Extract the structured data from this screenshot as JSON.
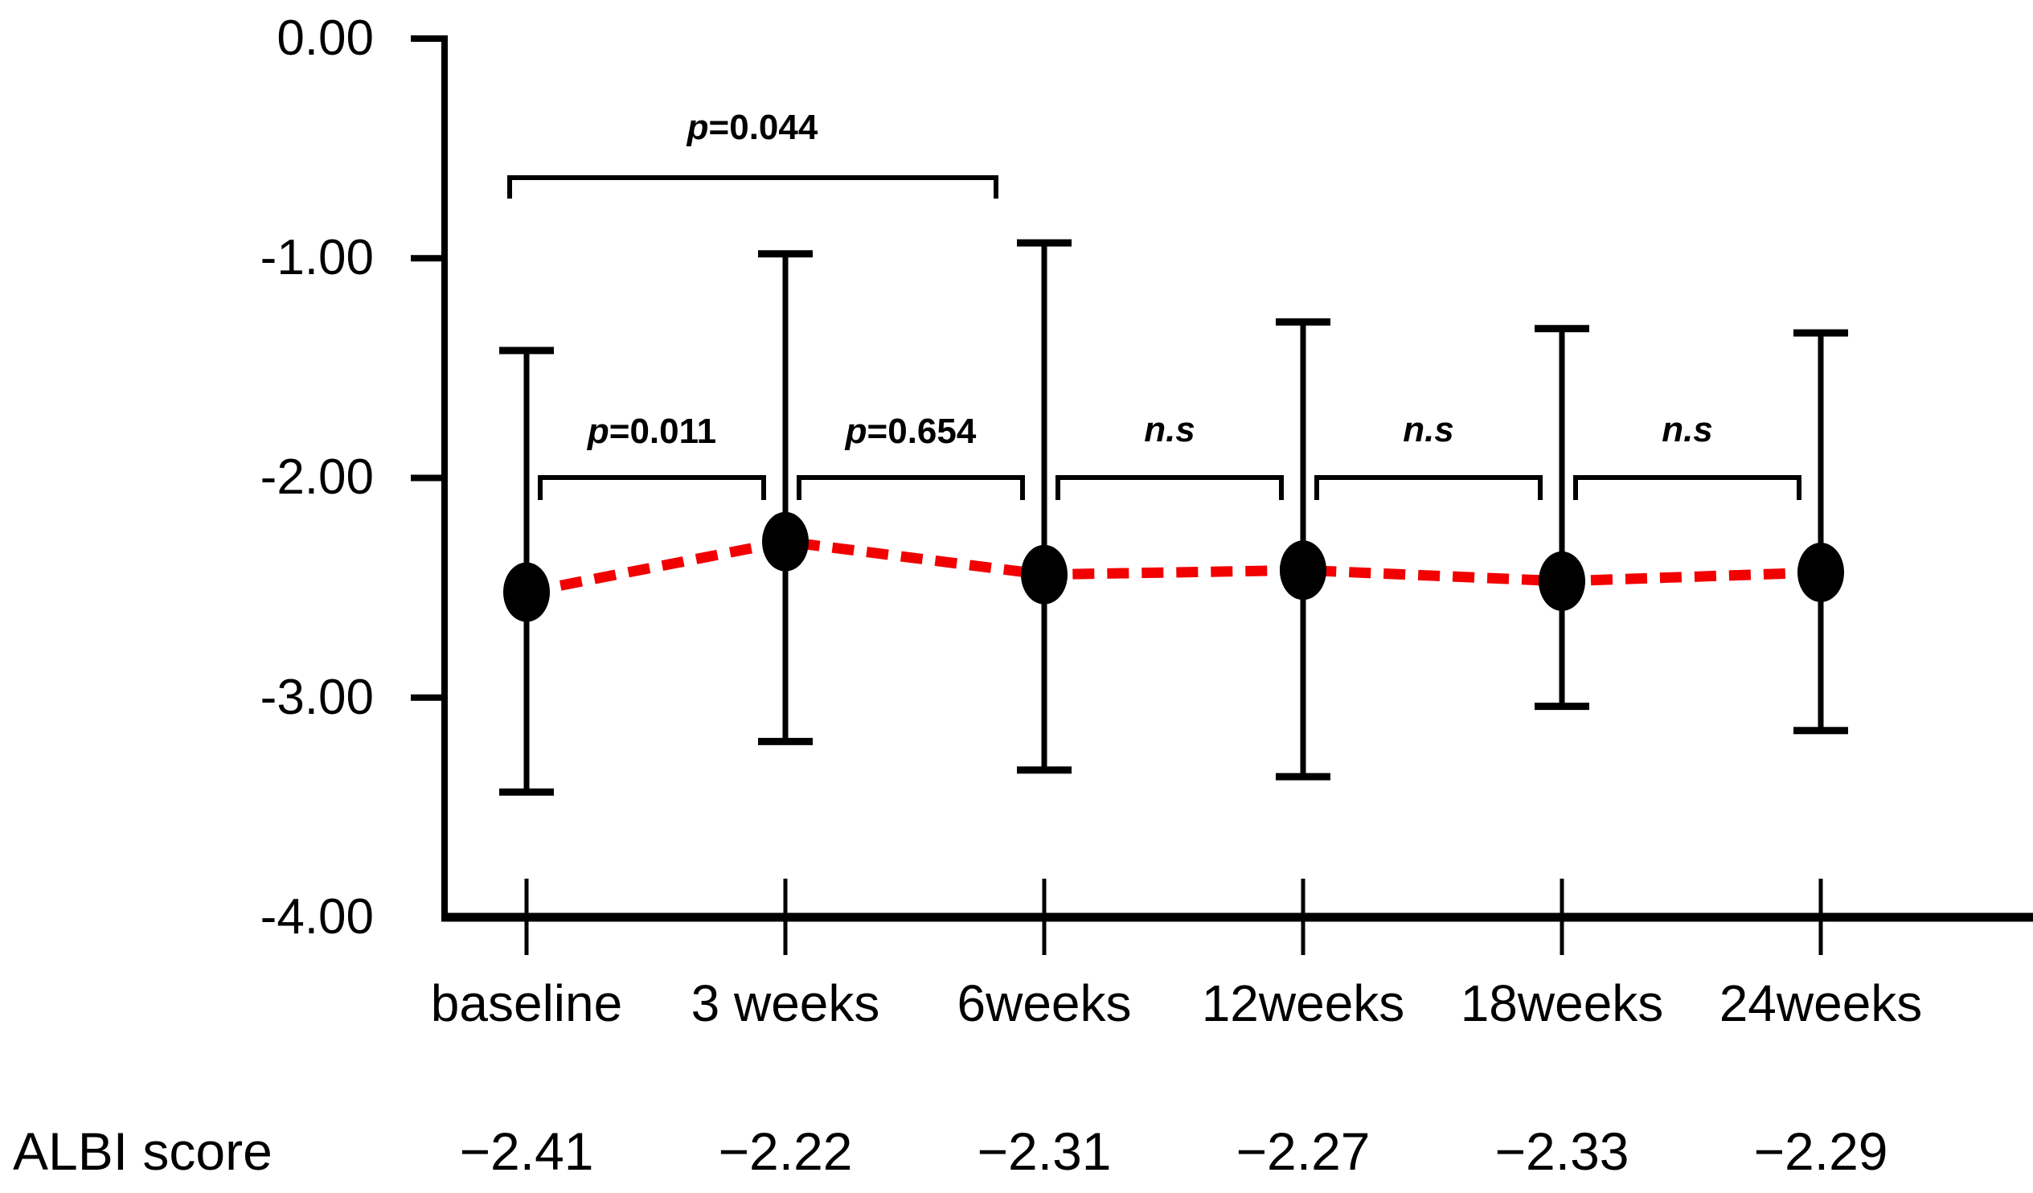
{
  "chart_data": {
    "type": "line",
    "title": "",
    "xlabel": "",
    "ylabel": "",
    "ylim": [
      -4.0,
      0.0
    ],
    "grid": false,
    "legend": "none",
    "y_ticks": [
      {
        "label": "0.00",
        "value": 0.0
      },
      {
        "label": "-1.00",
        "value": -1.0
      },
      {
        "label": "-2.00",
        "value": -2.0
      },
      {
        "label": "-3.00",
        "value": -3.0
      },
      {
        "label": "-4.00",
        "value": -4.0
      }
    ],
    "categories": [
      "baseline",
      "3 weeks",
      "6weeks",
      "12weeks",
      "18weeks",
      "24weeks"
    ],
    "points": [
      {
        "category": "baseline",
        "plotted_value": -2.52,
        "upper": -1.42,
        "lower": -3.43
      },
      {
        "category": "3 weeks",
        "plotted_value": -2.29,
        "upper": -0.98,
        "lower": -3.2
      },
      {
        "category": "6weeks",
        "plotted_value": -2.44,
        "upper": -0.93,
        "lower": -3.33
      },
      {
        "category": "12weeks",
        "plotted_value": -2.42,
        "upper": -1.29,
        "lower": -3.36
      },
      {
        "category": "18weeks",
        "plotted_value": -2.47,
        "upper": -1.32,
        "lower": -3.04
      },
      {
        "category": "24weeks",
        "plotted_value": -2.43,
        "upper": -1.34,
        "lower": -3.15
      }
    ],
    "albi_row": {
      "label": "ALBI score",
      "values": [
        "−2.41",
        "−2.22",
        "−2.31",
        "−2.27",
        "−2.33",
        "−2.29"
      ],
      "values_numeric": [
        -2.41,
        -2.22,
        -2.31,
        -2.27,
        -2.33,
        -2.29
      ]
    },
    "comparisons": [
      {
        "prefix": "p",
        "rest": "=0.044",
        "from": 0,
        "to": 2,
        "tier": "upper"
      },
      {
        "prefix": "p",
        "rest": "=0.011",
        "from": 0,
        "to": 1,
        "tier": "lower"
      },
      {
        "prefix": "p",
        "rest": "=0.654",
        "from": 1,
        "to": 2,
        "tier": "lower"
      },
      {
        "prefix": "n.s",
        "rest": "",
        "from": 2,
        "to": 3,
        "tier": "lower"
      },
      {
        "prefix": "n.s",
        "rest": "",
        "from": 3,
        "to": 4,
        "tier": "lower"
      },
      {
        "prefix": "n.s",
        "rest": "",
        "from": 4,
        "to": 5,
        "tier": "lower"
      }
    ],
    "colors": {
      "line": "#F20000",
      "marker": "#000000",
      "axis": "#000000",
      "text": "#000000"
    }
  }
}
